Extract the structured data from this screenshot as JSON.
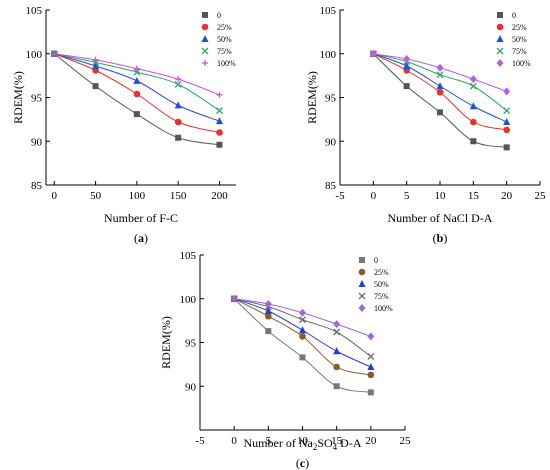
{
  "chart_data": [
    {
      "type": "scatter",
      "panel_label": "(a)",
      "panel_label_bold": "a",
      "xlabel": "Number of F-C",
      "ylabel": "RDEM(%)",
      "xlim": [
        -10,
        220
      ],
      "ylim": [
        85,
        105
      ],
      "xticks": [
        0,
        50,
        100,
        150,
        200
      ],
      "yticks": [
        85,
        90,
        95,
        100,
        105
      ],
      "fitted_curves": true,
      "legend_position": "top-right",
      "x": [
        0,
        50,
        100,
        150,
        200
      ],
      "series": [
        {
          "name": "0",
          "marker": "square",
          "color": "#555555",
          "values": [
            100,
            96.3,
            93.1,
            90.4,
            89.6
          ]
        },
        {
          "name": "25%",
          "marker": "circle",
          "color": "#e8312a",
          "values": [
            100,
            98.1,
            95.4,
            92.2,
            91.0
          ]
        },
        {
          "name": "50%",
          "marker": "triangle",
          "color": "#1f4fd6",
          "values": [
            100,
            98.6,
            96.9,
            94.1,
            92.3
          ]
        },
        {
          "name": "75%",
          "marker": "cross",
          "color": "#2ea866",
          "values": [
            100,
            99.0,
            97.9,
            96.5,
            93.5
          ]
        },
        {
          "name": "100%",
          "marker": "plus",
          "color": "#d24cd8",
          "values": [
            100,
            99.3,
            98.3,
            97.1,
            95.3
          ]
        }
      ]
    },
    {
      "type": "scatter",
      "panel_label": "(b)",
      "panel_label_bold": "b",
      "xlabel": "Number of NaCl D-A",
      "ylabel": "RDEM(%)",
      "xlim": [
        -5,
        25
      ],
      "ylim": [
        85,
        105
      ],
      "xticks": [
        -5,
        0,
        5,
        10,
        15,
        20,
        25
      ],
      "yticks": [
        85,
        90,
        95,
        100,
        105
      ],
      "fitted_curves": true,
      "legend_position": "top-right",
      "x": [
        0,
        5,
        10,
        15,
        20
      ],
      "series": [
        {
          "name": "0",
          "marker": "square",
          "color": "#555555",
          "values": [
            100,
            96.3,
            93.3,
            90.0,
            89.3
          ]
        },
        {
          "name": "25%",
          "marker": "circle",
          "color": "#e8312a",
          "values": [
            100,
            98.1,
            95.6,
            92.2,
            91.3
          ]
        },
        {
          "name": "50%",
          "marker": "triangle",
          "color": "#1f4fd6",
          "values": [
            100,
            98.6,
            96.3,
            94.0,
            92.2
          ]
        },
        {
          "name": "75%",
          "marker": "cross",
          "color": "#2ea866",
          "values": [
            100,
            99.1,
            97.6,
            96.3,
            93.5
          ]
        },
        {
          "name": "100%",
          "marker": "diamond",
          "color": "#b561e0",
          "values": [
            100,
            99.4,
            98.4,
            97.1,
            95.7
          ]
        }
      ]
    },
    {
      "type": "scatter",
      "panel_label": "(c)",
      "panel_label_bold": "c",
      "xlabel_prefix": "Number of Na",
      "xlabel_sub1": "2",
      "xlabel_mid": "SO",
      "xlabel_sub2": "4",
      "xlabel_suffix": " D-A",
      "ylabel": "RDEM(%)",
      "xlim": [
        -5,
        25
      ],
      "ylim": [
        85,
        105
      ],
      "xticks": [
        -5,
        0,
        5,
        10,
        15,
        20,
        25
      ],
      "yticks": [
        90,
        95,
        100,
        105
      ],
      "fitted_curves": true,
      "legend_position": "top-right",
      "x": [
        0,
        5,
        10,
        15,
        20
      ],
      "series": [
        {
          "name": "0",
          "marker": "square",
          "color": "#777777",
          "values": [
            100,
            96.3,
            93.3,
            90.0,
            89.3
          ]
        },
        {
          "name": "25%",
          "marker": "circle",
          "color": "#8a5a2e",
          "values": [
            100,
            98.0,
            95.7,
            92.2,
            91.3
          ]
        },
        {
          "name": "50%",
          "marker": "triangle",
          "color": "#1f3fd0",
          "values": [
            100,
            98.6,
            96.4,
            94.0,
            92.2
          ]
        },
        {
          "name": "75%",
          "marker": "cross",
          "color": "#6a6a6a",
          "values": [
            100,
            99.1,
            97.6,
            96.2,
            93.4
          ]
        },
        {
          "name": "100%",
          "marker": "diamond",
          "color": "#9a6ad8",
          "values": [
            100,
            99.4,
            98.4,
            97.1,
            95.7
          ]
        }
      ]
    }
  ]
}
